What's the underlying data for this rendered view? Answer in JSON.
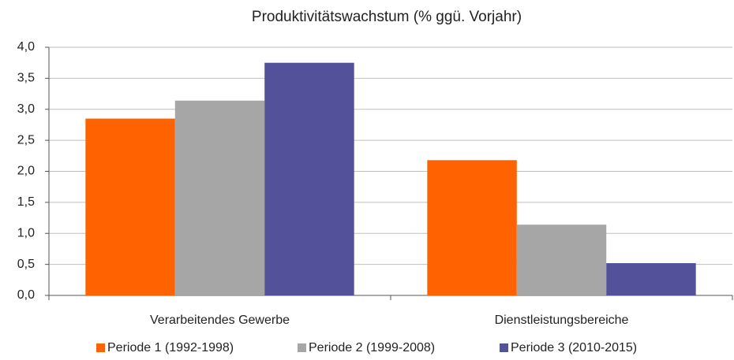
{
  "chart_data": {
    "type": "bar",
    "title": "Produktivitätswachstum (% ggü. Vorjahr)",
    "categories": [
      "Verarbeitendes Gewerbe",
      "Dienstleistungsbereiche"
    ],
    "series": [
      {
        "name": "Periode 1 (1992-1998)",
        "color": "#ff6200",
        "values": [
          2.85,
          2.18
        ]
      },
      {
        "name": "Periode 2 (1999-2008)",
        "color": "#a6a6a6",
        "values": [
          3.14,
          1.14
        ]
      },
      {
        "name": "Periode 3 (2010-2015)",
        "color": "#525199",
        "values": [
          3.75,
          0.52
        ]
      }
    ],
    "ylim": [
      0,
      4
    ],
    "yticks": [
      {
        "value": 0,
        "label": "0,0"
      },
      {
        "value": 0.5,
        "label": "0,5"
      },
      {
        "value": 1,
        "label": "1,0"
      },
      {
        "value": 1.5,
        "label": "1,5"
      },
      {
        "value": 2,
        "label": "2,0"
      },
      {
        "value": 2.5,
        "label": "2,5"
      },
      {
        "value": 3,
        "label": "3,0"
      },
      {
        "value": 3.5,
        "label": "3,5"
      },
      {
        "value": 4,
        "label": "4,0"
      }
    ],
    "grid": true,
    "legend": "bottom"
  }
}
